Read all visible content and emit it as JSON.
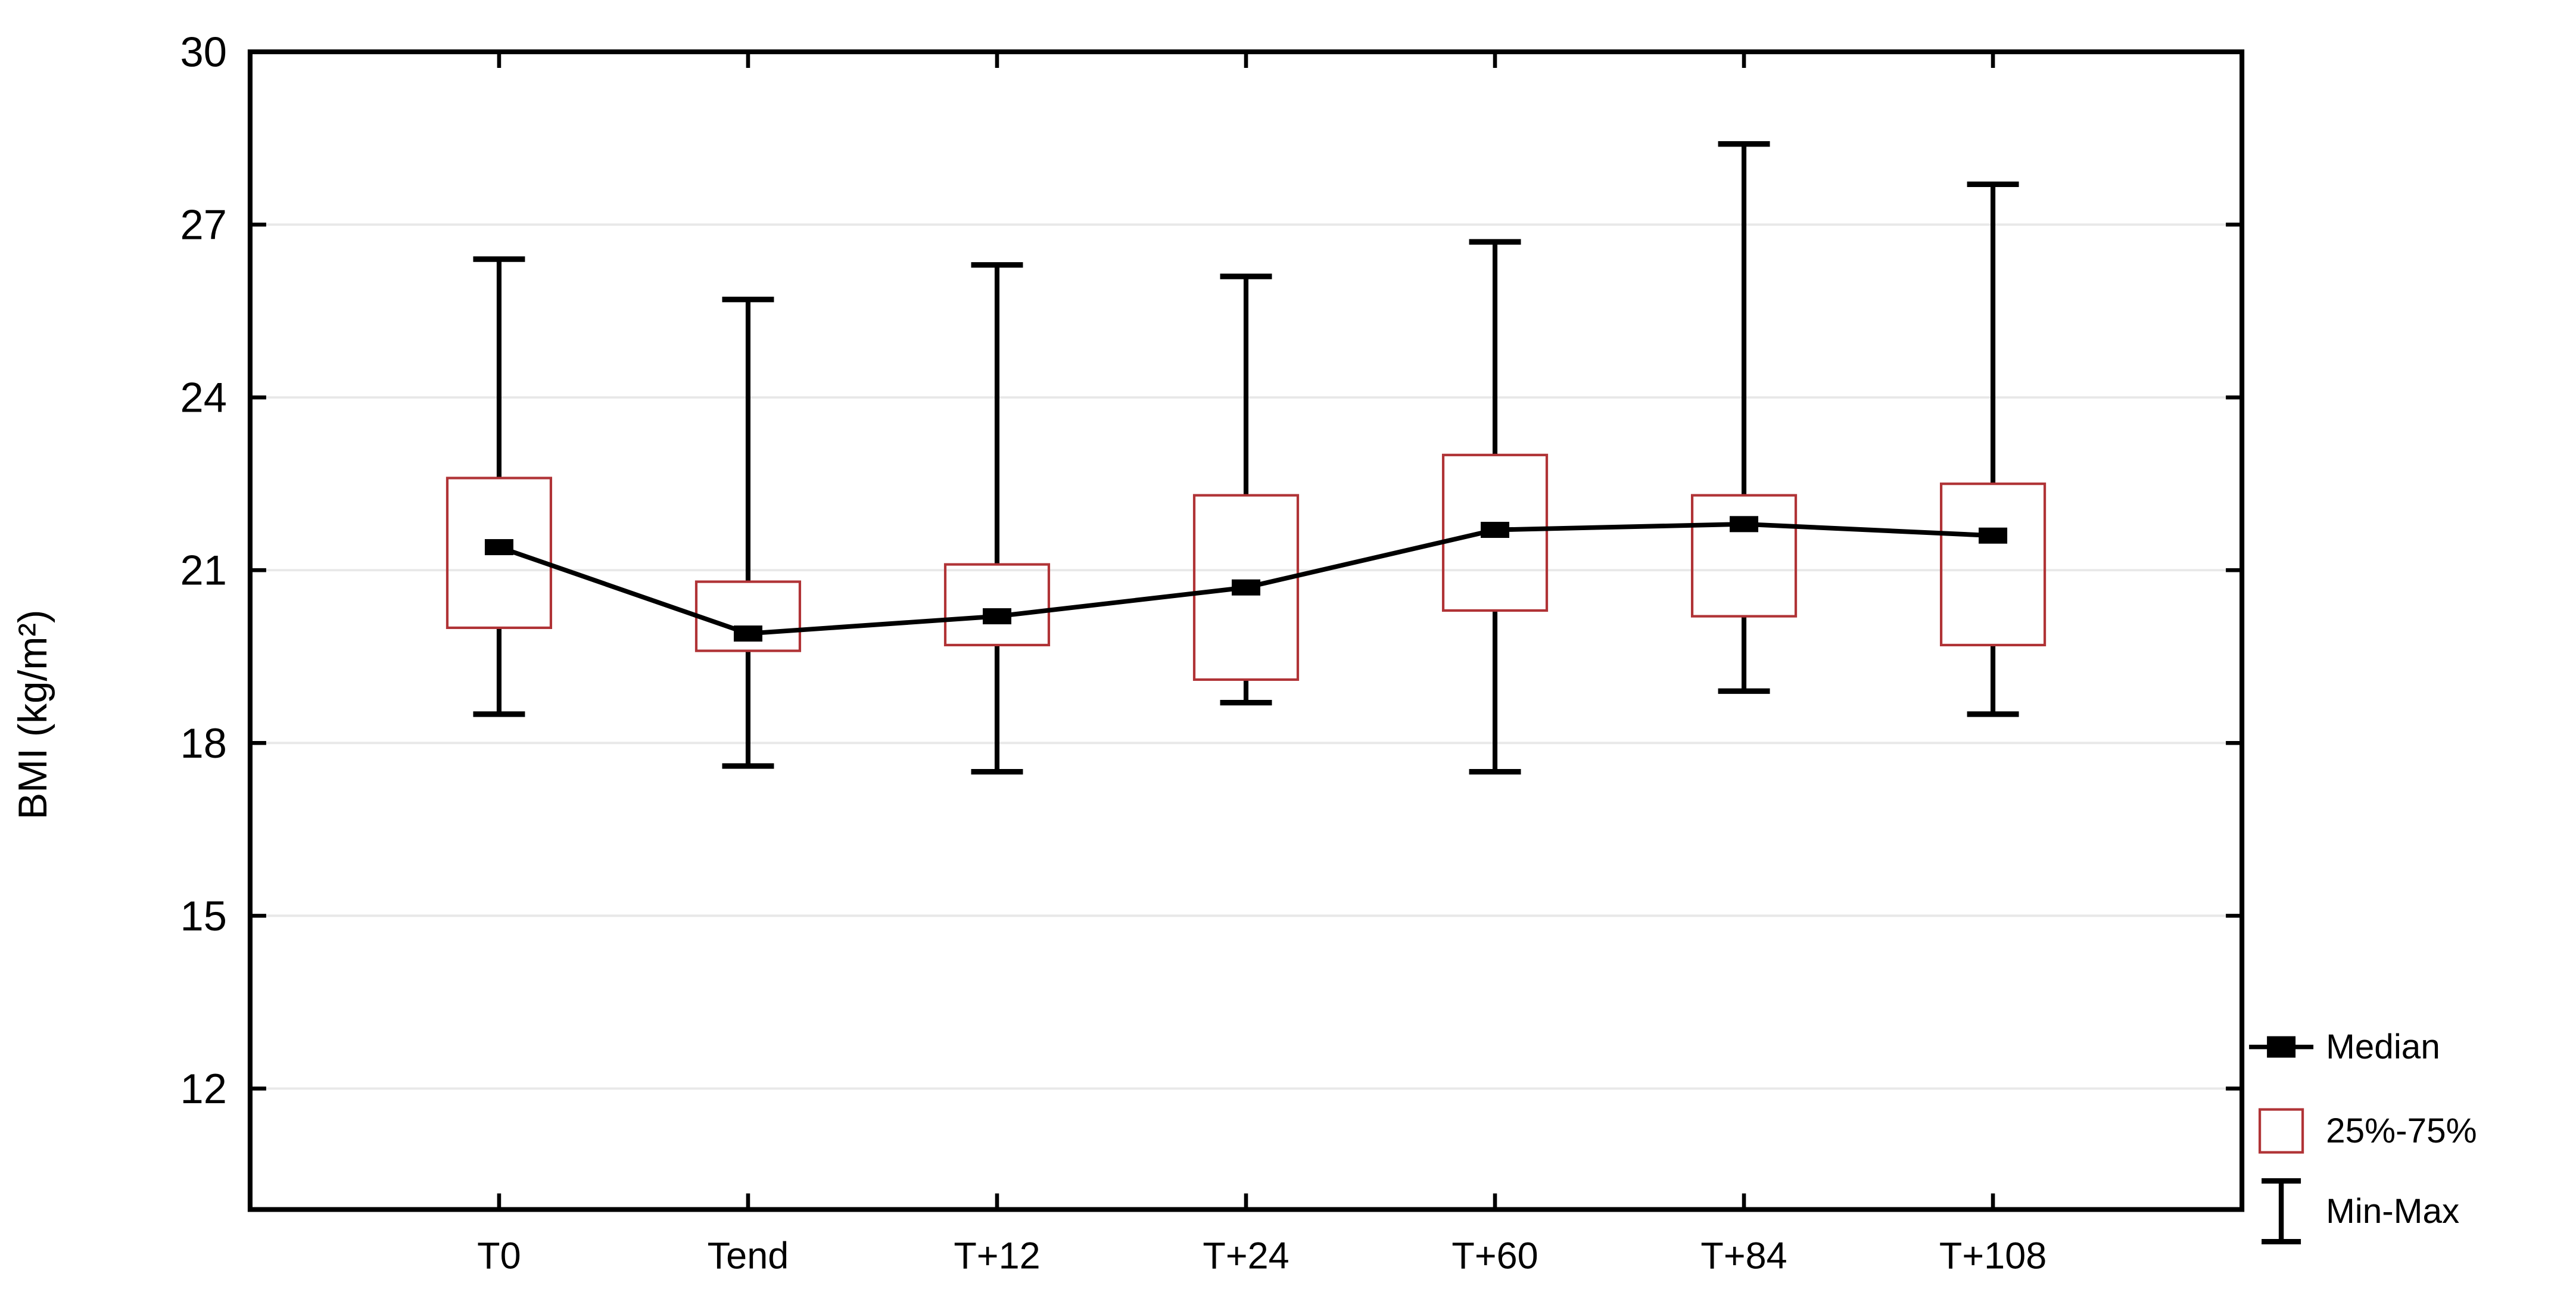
{
  "axes": {
    "y_title": "BMI (kg/m²)",
    "y_tick_labels": [
      "30",
      "27",
      "24",
      "21",
      "18",
      "15",
      "12"
    ],
    "x_tick_labels": [
      "T0",
      "Tend",
      "T+12",
      "T+24",
      "T+60",
      "T+84",
      "T+108"
    ]
  },
  "legend": {
    "items": [
      {
        "label": "Median",
        "symbol": "median-square-with-line"
      },
      {
        "label": "25%-75%",
        "symbol": "open-box"
      },
      {
        "label": "Min-Max",
        "symbol": "whisker-ibeam"
      }
    ]
  },
  "colors": {
    "line": "#000000",
    "box_outline": "#b03336",
    "gridline": "#e8e8e8",
    "background": "#ffffff"
  },
  "chart_data": {
    "type": "box",
    "title": "",
    "xlabel": "",
    "ylabel": "BMI (kg/m²)",
    "categories": [
      "T0",
      "Tend",
      "T+12",
      "T+24",
      "T+60",
      "T+84",
      "T+108"
    ],
    "series": [
      {
        "category": "T0",
        "min": 18.5,
        "q1": 20.0,
        "median": 21.4,
        "q3": 22.6,
        "max": 26.4
      },
      {
        "category": "Tend",
        "min": 17.6,
        "q1": 19.6,
        "median": 19.9,
        "q3": 20.8,
        "max": 25.7
      },
      {
        "category": "T+12",
        "min": 17.5,
        "q1": 19.7,
        "median": 20.2,
        "q3": 21.1,
        "max": 26.3
      },
      {
        "category": "T+24",
        "min": 18.7,
        "q1": 19.1,
        "median": 20.7,
        "q3": 22.3,
        "max": 26.1
      },
      {
        "category": "T+60",
        "min": 17.5,
        "q1": 20.3,
        "median": 21.7,
        "q3": 23.0,
        "max": 26.7
      },
      {
        "category": "T+84",
        "min": 18.9,
        "q1": 20.2,
        "median": 21.8,
        "q3": 22.3,
        "max": 28.4
      },
      {
        "category": "T+108",
        "min": 18.5,
        "q1": 19.7,
        "median": 21.6,
        "q3": 22.5,
        "max": 27.7
      }
    ],
    "yticks": [
      30,
      27,
      24,
      21,
      18,
      15,
      12
    ],
    "ylim_top": 30,
    "ylim_bottom": 9.9,
    "grid": true,
    "whiskers_outside_box_only": true,
    "legend_entries": [
      "Median",
      "25%-75%",
      "Min-Max"
    ],
    "legend_position": "bottom-right-outside"
  }
}
